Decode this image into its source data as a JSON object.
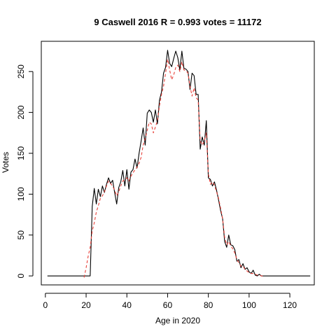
{
  "chart_data": {
    "type": "line",
    "title": "9 Caswell 2016 R = 0.993 votes = 11172",
    "xlabel": "Age in 2020",
    "ylabel": "Votes",
    "xlim": [
      -2,
      132
    ],
    "ylim": [
      -11,
      287
    ],
    "xticks": [
      0,
      20,
      40,
      60,
      80,
      100,
      120
    ],
    "yticks": [
      0,
      50,
      100,
      150,
      200,
      250
    ],
    "grid": false,
    "legend": "none",
    "series": [
      {
        "color": "#000000",
        "dash": "solid",
        "points": [
          [
            1,
            0
          ],
          [
            5,
            0
          ],
          [
            10,
            0
          ],
          [
            15,
            0
          ],
          [
            18,
            0
          ],
          [
            19,
            0
          ],
          [
            20,
            0
          ],
          [
            21,
            0
          ],
          [
            22,
            0
          ],
          [
            23,
            85
          ],
          [
            24,
            107
          ],
          [
            25,
            88
          ],
          [
            26,
            106
          ],
          [
            27,
            97
          ],
          [
            28,
            110
          ],
          [
            29,
            102
          ],
          [
            30,
            112
          ],
          [
            31,
            120
          ],
          [
            32,
            113
          ],
          [
            33,
            117
          ],
          [
            34,
            102
          ],
          [
            35,
            88
          ],
          [
            36,
            108
          ],
          [
            37,
            115
          ],
          [
            38,
            129
          ],
          [
            39,
            110
          ],
          [
            40,
            130
          ],
          [
            41,
            106
          ],
          [
            42,
            127
          ],
          [
            43,
            130
          ],
          [
            44,
            143
          ],
          [
            45,
            132
          ],
          [
            46,
            150
          ],
          [
            47,
            165
          ],
          [
            48,
            181
          ],
          [
            49,
            160
          ],
          [
            50,
            199
          ],
          [
            51,
            203
          ],
          [
            52,
            200
          ],
          [
            53,
            188
          ],
          [
            54,
            203
          ],
          [
            55,
            186
          ],
          [
            56,
            215
          ],
          [
            57,
            225
          ],
          [
            58,
            248
          ],
          [
            59,
            255
          ],
          [
            60,
            276
          ],
          [
            61,
            260
          ],
          [
            62,
            256
          ],
          [
            63,
            266
          ],
          [
            64,
            275
          ],
          [
            65,
            267
          ],
          [
            66,
            252
          ],
          [
            67,
            275
          ],
          [
            68,
            254
          ],
          [
            69,
            253
          ],
          [
            70,
            250
          ],
          [
            71,
            228
          ],
          [
            72,
            248
          ],
          [
            73,
            245
          ],
          [
            74,
            222
          ],
          [
            75,
            222
          ],
          [
            76,
            155
          ],
          [
            77,
            170
          ],
          [
            78,
            160
          ],
          [
            79,
            190
          ],
          [
            80,
            120
          ],
          [
            81,
            118
          ],
          [
            82,
            110
          ],
          [
            83,
            115
          ],
          [
            84,
            105
          ],
          [
            85,
            93
          ],
          [
            86,
            80
          ],
          [
            87,
            70
          ],
          [
            88,
            42
          ],
          [
            89,
            35
          ],
          [
            90,
            50
          ],
          [
            91,
            38
          ],
          [
            92,
            37
          ],
          [
            93,
            32
          ],
          [
            94,
            18
          ],
          [
            95,
            20
          ],
          [
            96,
            10
          ],
          [
            97,
            15
          ],
          [
            98,
            8
          ],
          [
            99,
            10
          ],
          [
            100,
            5
          ],
          [
            101,
            3
          ],
          [
            102,
            7
          ],
          [
            103,
            1
          ],
          [
            104,
            0
          ],
          [
            105,
            2
          ],
          [
            106,
            0
          ],
          [
            107,
            0
          ],
          [
            110,
            0
          ],
          [
            115,
            0
          ],
          [
            120,
            0
          ],
          [
            125,
            0
          ],
          [
            130,
            0
          ]
        ]
      },
      {
        "color": "#e8413a",
        "dash": "dashed",
        "points": [
          [
            19,
            -2
          ],
          [
            20,
            10
          ],
          [
            21,
            24
          ],
          [
            22,
            35
          ],
          [
            23,
            55
          ],
          [
            24,
            65
          ],
          [
            25,
            78
          ],
          [
            26,
            86
          ],
          [
            27,
            95
          ],
          [
            28,
            98
          ],
          [
            29,
            103
          ],
          [
            30,
            110
          ],
          [
            31,
            116
          ],
          [
            32,
            113
          ],
          [
            33,
            110
          ],
          [
            34,
            105
          ],
          [
            35,
            98
          ],
          [
            36,
            103
          ],
          [
            37,
            110
          ],
          [
            38,
            116
          ],
          [
            39,
            118
          ],
          [
            40,
            120
          ],
          [
            41,
            116
          ],
          [
            42,
            122
          ],
          [
            43,
            126
          ],
          [
            44,
            130
          ],
          [
            45,
            133
          ],
          [
            46,
            138
          ],
          [
            47,
            145
          ],
          [
            48,
            160
          ],
          [
            49,
            168
          ],
          [
            50,
            178
          ],
          [
            51,
            188
          ],
          [
            52,
            186
          ],
          [
            53,
            175
          ],
          [
            54,
            182
          ],
          [
            55,
            190
          ],
          [
            56,
            208
          ],
          [
            57,
            222
          ],
          [
            58,
            232
          ],
          [
            59,
            248
          ],
          [
            60,
            265
          ],
          [
            61,
            252
          ],
          [
            62,
            240
          ],
          [
            63,
            246
          ],
          [
            64,
            255
          ],
          [
            65,
            258
          ],
          [
            66,
            250
          ],
          [
            67,
            262
          ],
          [
            68,
            252
          ],
          [
            69,
            251
          ],
          [
            70,
            248
          ],
          [
            71,
            232
          ],
          [
            72,
            220
          ],
          [
            73,
            230
          ],
          [
            74,
            218
          ],
          [
            75,
            215
          ],
          [
            76,
            165
          ],
          [
            77,
            160
          ],
          [
            78,
            165
          ],
          [
            79,
            175
          ],
          [
            80,
            125
          ],
          [
            81,
            112
          ],
          [
            82,
            115
          ],
          [
            83,
            111
          ],
          [
            84,
            103
          ],
          [
            85,
            95
          ],
          [
            86,
            83
          ],
          [
            87,
            70
          ],
          [
            88,
            47
          ],
          [
            89,
            38
          ],
          [
            90,
            42
          ],
          [
            91,
            37
          ],
          [
            92,
            33
          ],
          [
            93,
            28
          ],
          [
            94,
            20
          ],
          [
            95,
            16
          ],
          [
            96,
            12
          ],
          [
            97,
            12
          ],
          [
            98,
            8
          ],
          [
            99,
            6
          ],
          [
            100,
            4
          ],
          [
            101,
            3
          ],
          [
            102,
            3
          ],
          [
            103,
            2
          ],
          [
            104,
            1
          ],
          [
            105,
            1
          ],
          [
            106,
            0
          ],
          [
            107,
            0
          ]
        ]
      }
    ]
  }
}
